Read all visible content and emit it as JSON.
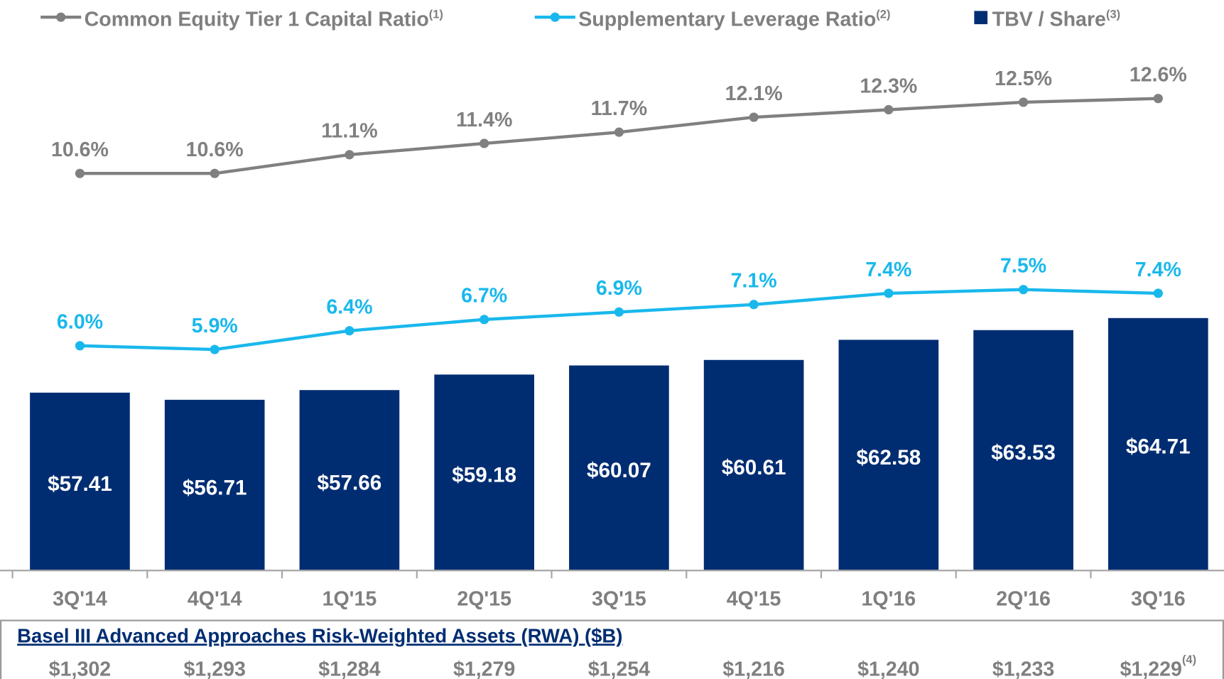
{
  "chart_data": {
    "type": "bar",
    "categories": [
      "3Q'14",
      "4Q'14",
      "1Q'15",
      "2Q'15",
      "3Q'15",
      "4Q'15",
      "1Q'16",
      "2Q'16",
      "3Q'16"
    ],
    "ylim": [
      40,
      95
    ],
    "y2lim": [
      0,
      15
    ],
    "series": [
      {
        "name": "Common Equity Tier 1 Capital Ratio",
        "note": "(1)",
        "type": "line",
        "axis": "y2",
        "color": "#808080",
        "values": [
          10.6,
          10.6,
          11.1,
          11.4,
          11.7,
          12.1,
          12.3,
          12.5,
          12.6
        ],
        "value_labels": [
          "10.6%",
          "10.6%",
          "11.1%",
          "11.4%",
          "11.7%",
          "12.1%",
          "12.3%",
          "12.5%",
          "12.6%"
        ]
      },
      {
        "name": "Supplementary Leverage Ratio",
        "note": "(2)",
        "type": "line",
        "axis": "y2",
        "color": "#19b8ec",
        "values": [
          6.0,
          5.9,
          6.4,
          6.7,
          6.9,
          7.1,
          7.4,
          7.5,
          7.4
        ],
        "value_labels": [
          "6.0%",
          "5.9%",
          "6.4%",
          "6.7%",
          "6.9%",
          "7.1%",
          "7.4%",
          "7.5%",
          "7.4%"
        ]
      },
      {
        "name": "TBV / Share",
        "note": "(3)",
        "type": "bar",
        "color": "#002d72",
        "values": [
          57.41,
          56.71,
          57.66,
          59.18,
          60.07,
          60.61,
          62.58,
          63.53,
          64.71
        ],
        "value_labels": [
          "$57.41",
          "$56.71",
          "$57.66",
          "$59.18",
          "$60.07",
          "$60.61",
          "$62.58",
          "$63.53",
          "$64.71"
        ]
      }
    ]
  },
  "rwa": {
    "title": "Basel III Advanced Approaches Risk-Weighted Assets (RWA) ($B)",
    "values": [
      "$1,302",
      "$1,293",
      "$1,284",
      "$1,279",
      "$1,254",
      "$1,216",
      "$1,240",
      "$1,233",
      "$1,229"
    ],
    "note": "(4)"
  }
}
